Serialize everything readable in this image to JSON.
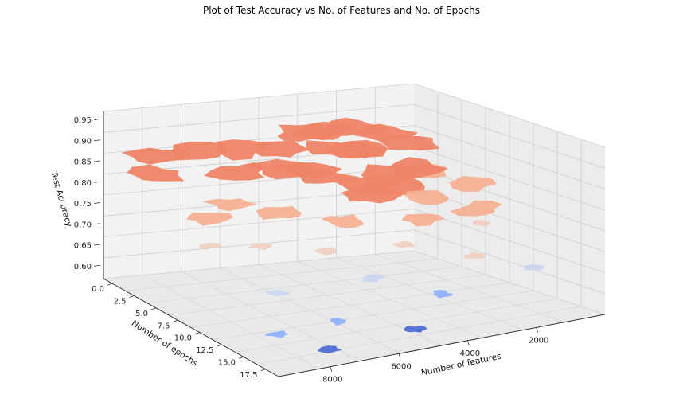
{
  "chart_data": {
    "type": "surface",
    "title": "Plot of Test Accuracy vs No. of Features and No. of Epochs",
    "xlabel": "Number of features",
    "ylabel": "Number of epochs",
    "zlabel": "Test Accuracy",
    "x_ticks": [
      "2000",
      "4000",
      "6000",
      "8000"
    ],
    "y_ticks": [
      "0.0",
      "2.5",
      "5.0",
      "7.5",
      "10.0",
      "12.5",
      "15.0",
      "17.5"
    ],
    "z_ticks": [
      "0.60",
      "0.65",
      "0.70",
      "0.75",
      "0.80",
      "0.85",
      "0.90",
      "0.95"
    ],
    "colormap": "coolwarm",
    "colors": {
      "high": "#ee8466",
      "mid_high": "#f6b093",
      "mid": "#eed0c0",
      "mid_low": "#c9d7ef",
      "low": "#8fb1fe",
      "lowest": "#4f6fd6",
      "pane": "#f2f2f2",
      "grid": "#cfcfcf"
    },
    "patches": [
      {
        "features": 1000,
        "epochs": 2,
        "accuracy": 0.86,
        "level": "high"
      },
      {
        "features": 1500,
        "epochs": 1,
        "accuracy": 0.88,
        "level": "high"
      },
      {
        "features": 2000,
        "epochs": 0,
        "accuracy": 0.83,
        "level": "high"
      },
      {
        "features": 2500,
        "epochs": 1,
        "accuracy": 0.9,
        "level": "high"
      },
      {
        "features": 3000,
        "epochs": 3,
        "accuracy": 0.87,
        "level": "high"
      },
      {
        "features": 3500,
        "epochs": 2,
        "accuracy": 0.91,
        "level": "high"
      },
      {
        "features": 4000,
        "epochs": 4,
        "accuracy": 0.89,
        "level": "high"
      },
      {
        "features": 4500,
        "epochs": 3,
        "accuracy": 0.92,
        "level": "high"
      },
      {
        "features": 5000,
        "epochs": 5,
        "accuracy": 0.86,
        "level": "high"
      },
      {
        "features": 5500,
        "epochs": 4,
        "accuracy": 0.9,
        "level": "high"
      },
      {
        "features": 6000,
        "epochs": 6,
        "accuracy": 0.88,
        "level": "high"
      },
      {
        "features": 3000,
        "epochs": 7,
        "accuracy": 0.85,
        "level": "high"
      },
      {
        "features": 4000,
        "epochs": 8,
        "accuracy": 0.84,
        "level": "high"
      },
      {
        "features": 2000,
        "epochs": 6,
        "accuracy": 0.84,
        "level": "high"
      },
      {
        "features": 5000,
        "epochs": 7,
        "accuracy": 0.86,
        "level": "high"
      },
      {
        "features": 6500,
        "epochs": 3,
        "accuracy": 0.9,
        "level": "high"
      },
      {
        "features": 7000,
        "epochs": 5,
        "accuracy": 0.87,
        "level": "high"
      },
      {
        "features": 7500,
        "epochs": 2,
        "accuracy": 0.89,
        "level": "high"
      },
      {
        "features": 8500,
        "epochs": 1,
        "accuracy": 0.88,
        "level": "high"
      },
      {
        "features": 9000,
        "epochs": 3,
        "accuracy": 0.86,
        "level": "high"
      },
      {
        "features": 3500,
        "epochs": 9,
        "accuracy": 0.84,
        "level": "high"
      },
      {
        "features": 4500,
        "epochs": 10,
        "accuracy": 0.84,
        "level": "high"
      },
      {
        "features": 1500,
        "epochs": 5,
        "accuracy": 0.82,
        "level": "mid_high"
      },
      {
        "features": 1000,
        "epochs": 8,
        "accuracy": 0.81,
        "level": "mid_high"
      },
      {
        "features": 2500,
        "epochs": 9,
        "accuracy": 0.8,
        "level": "mid_high"
      },
      {
        "features": 6500,
        "epochs": 8,
        "accuracy": 0.8,
        "level": "mid_high"
      },
      {
        "features": 7500,
        "epochs": 6,
        "accuracy": 0.81,
        "level": "mid_high"
      },
      {
        "features": 8500,
        "epochs": 7,
        "accuracy": 0.8,
        "level": "mid_high"
      },
      {
        "features": 5500,
        "epochs": 11,
        "accuracy": 0.8,
        "level": "mid_high"
      },
      {
        "features": 3500,
        "epochs": 12,
        "accuracy": 0.79,
        "level": "mid_high"
      },
      {
        "features": 1500,
        "epochs": 11,
        "accuracy": 0.78,
        "level": "mid_high"
      },
      {
        "features": 2000,
        "epochs": 13,
        "accuracy": 0.77,
        "level": "mid"
      },
      {
        "features": 4500,
        "epochs": 14,
        "accuracy": 0.76,
        "level": "mid"
      },
      {
        "features": 6500,
        "epochs": 13,
        "accuracy": 0.76,
        "level": "mid"
      },
      {
        "features": 8000,
        "epochs": 11,
        "accuracy": 0.77,
        "level": "mid"
      },
      {
        "features": 9000,
        "epochs": 9,
        "accuracy": 0.76,
        "level": "mid"
      },
      {
        "features": 3000,
        "epochs": 16,
        "accuracy": 0.73,
        "level": "mid"
      },
      {
        "features": 6000,
        "epochs": 16,
        "accuracy": 0.72,
        "level": "mid_low"
      },
      {
        "features": 8500,
        "epochs": 15,
        "accuracy": 0.71,
        "level": "mid_low"
      },
      {
        "features": 1500,
        "epochs": 17,
        "accuracy": 0.69,
        "level": "mid_low"
      },
      {
        "features": 4500,
        "epochs": 18,
        "accuracy": 0.68,
        "level": "low"
      },
      {
        "features": 7500,
        "epochs": 18,
        "accuracy": 0.66,
        "level": "low"
      },
      {
        "features": 9000,
        "epochs": 17,
        "accuracy": 0.64,
        "level": "low"
      },
      {
        "features": 5500,
        "epochs": 19,
        "accuracy": 0.62,
        "level": "lowest"
      },
      {
        "features": 8000,
        "epochs": 19,
        "accuracy": 0.61,
        "level": "lowest"
      }
    ]
  }
}
